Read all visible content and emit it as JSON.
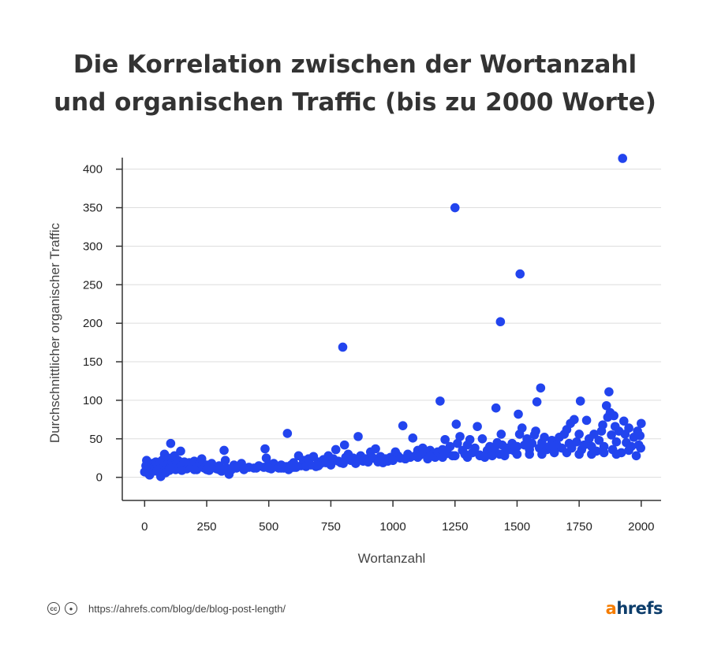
{
  "title_lines": [
    "Die Korrelation zwischen der Wortanzahl",
    "und organischen Traffic (bis zu 2000 Worte)"
  ],
  "footer": {
    "license_icons": [
      "cc-icon",
      "by-icon"
    ],
    "url": "https://ahrefs.com/blog/de/blog-post-length/"
  },
  "logo": {
    "first": "a",
    "rest": "hrefs"
  },
  "chart_data": {
    "type": "scatter",
    "title": "Die Korrelation zwischen der Wortanzahl und organischen Traffic (bis zu 2000 Worte)",
    "xlabel": "Wortanzahl",
    "ylabel": "Durchschnittlicher organischer Traffic",
    "xlim": [
      -90,
      2080
    ],
    "ylim": [
      -30,
      415
    ],
    "xticks": [
      0,
      250,
      500,
      750,
      1000,
      1250,
      1500,
      1750,
      2000
    ],
    "yticks": [
      0,
      50,
      100,
      150,
      200,
      250,
      300,
      350,
      400
    ],
    "grid": true,
    "color": "#2244ee",
    "points": [
      [
        0,
        7
      ],
      [
        5,
        15
      ],
      [
        8,
        22
      ],
      [
        12,
        10
      ],
      [
        15,
        5
      ],
      [
        20,
        3
      ],
      [
        25,
        12
      ],
      [
        30,
        18
      ],
      [
        35,
        8
      ],
      [
        40,
        14
      ],
      [
        45,
        20
      ],
      [
        50,
        9
      ],
      [
        55,
        16
      ],
      [
        60,
        11
      ],
      [
        65,
        1
      ],
      [
        70,
        22
      ],
      [
        75,
        13
      ],
      [
        80,
        30
      ],
      [
        85,
        6
      ],
      [
        90,
        17
      ],
      [
        95,
        25
      ],
      [
        100,
        12
      ],
      [
        105,
        44
      ],
      [
        110,
        20
      ],
      [
        115,
        15
      ],
      [
        120,
        28
      ],
      [
        125,
        10
      ],
      [
        130,
        18
      ],
      [
        135,
        22
      ],
      [
        140,
        12
      ],
      [
        145,
        34
      ],
      [
        150,
        16
      ],
      [
        160,
        20
      ],
      [
        170,
        11
      ],
      [
        180,
        19
      ],
      [
        190,
        14
      ],
      [
        200,
        21
      ],
      [
        210,
        10
      ],
      [
        220,
        17
      ],
      [
        230,
        24
      ],
      [
        240,
        12
      ],
      [
        250,
        16
      ],
      [
        260,
        9
      ],
      [
        270,
        18
      ],
      [
        280,
        13
      ],
      [
        290,
        11
      ],
      [
        300,
        15
      ],
      [
        310,
        8
      ],
      [
        320,
        35
      ],
      [
        325,
        22
      ],
      [
        330,
        12
      ],
      [
        340,
        4
      ],
      [
        350,
        10
      ],
      [
        360,
        16
      ],
      [
        370,
        12
      ],
      [
        380,
        14
      ],
      [
        390,
        18
      ],
      [
        400,
        10
      ],
      [
        420,
        13
      ],
      [
        440,
        12
      ],
      [
        460,
        15
      ],
      [
        480,
        13
      ],
      [
        485,
        37
      ],
      [
        490,
        25
      ],
      [
        500,
        17
      ],
      [
        510,
        11
      ],
      [
        520,
        18
      ],
      [
        530,
        14
      ],
      [
        540,
        12
      ],
      [
        550,
        16
      ],
      [
        560,
        12
      ],
      [
        570,
        14
      ],
      [
        575,
        57
      ],
      [
        580,
        10
      ],
      [
        590,
        16
      ],
      [
        600,
        19
      ],
      [
        610,
        13
      ],
      [
        620,
        28
      ],
      [
        630,
        15
      ],
      [
        640,
        22
      ],
      [
        650,
        18
      ],
      [
        660,
        24
      ],
      [
        670,
        16
      ],
      [
        680,
        27
      ],
      [
        690,
        14
      ],
      [
        700,
        20
      ],
      [
        710,
        18
      ],
      [
        720,
        23
      ],
      [
        730,
        19
      ],
      [
        740,
        28
      ],
      [
        750,
        17
      ],
      [
        760,
        24
      ],
      [
        770,
        36
      ],
      [
        780,
        21
      ],
      [
        790,
        19
      ],
      [
        798,
        169
      ],
      [
        805,
        42
      ],
      [
        810,
        26
      ],
      [
        820,
        30
      ],
      [
        830,
        22
      ],
      [
        840,
        25
      ],
      [
        850,
        18
      ],
      [
        860,
        53
      ],
      [
        870,
        28
      ],
      [
        880,
        21
      ],
      [
        890,
        24
      ],
      [
        900,
        20
      ],
      [
        910,
        33
      ],
      [
        920,
        25
      ],
      [
        930,
        37
      ],
      [
        940,
        20
      ],
      [
        950,
        27
      ],
      [
        960,
        19
      ],
      [
        970,
        24
      ],
      [
        980,
        21
      ],
      [
        990,
        26
      ],
      [
        1000,
        22
      ],
      [
        1010,
        33
      ],
      [
        1020,
        28
      ],
      [
        1030,
        25
      ],
      [
        1040,
        67
      ],
      [
        1050,
        24
      ],
      [
        1060,
        30
      ],
      [
        1070,
        26
      ],
      [
        1080,
        51
      ],
      [
        1090,
        28
      ],
      [
        1100,
        35
      ],
      [
        1110,
        29
      ],
      [
        1120,
        38
      ],
      [
        1130,
        32
      ],
      [
        1140,
        24
      ],
      [
        1150,
        35
      ],
      [
        1160,
        30
      ],
      [
        1170,
        26
      ],
      [
        1180,
        33
      ],
      [
        1190,
        99
      ],
      [
        1195,
        28
      ],
      [
        1200,
        36
      ],
      [
        1210,
        49
      ],
      [
        1220,
        31
      ],
      [
        1230,
        40
      ],
      [
        1240,
        28
      ],
      [
        1250,
        350
      ],
      [
        1255,
        69
      ],
      [
        1260,
        44
      ],
      [
        1270,
        53
      ],
      [
        1280,
        35
      ],
      [
        1290,
        30
      ],
      [
        1300,
        42
      ],
      [
        1310,
        49
      ],
      [
        1320,
        32
      ],
      [
        1330,
        38
      ],
      [
        1340,
        66
      ],
      [
        1350,
        29
      ],
      [
        1360,
        50
      ],
      [
        1370,
        26
      ],
      [
        1380,
        35
      ],
      [
        1390,
        40
      ],
      [
        1400,
        33
      ],
      [
        1410,
        38
      ],
      [
        1415,
        90
      ],
      [
        1420,
        45
      ],
      [
        1430,
        30
      ],
      [
        1433,
        202
      ],
      [
        1436,
        56
      ],
      [
        1440,
        42
      ],
      [
        1450,
        32
      ],
      [
        1460,
        38
      ],
      [
        1470,
        36
      ],
      [
        1480,
        44
      ],
      [
        1490,
        34
      ],
      [
        1500,
        40
      ],
      [
        1505,
        82
      ],
      [
        1510,
        56
      ],
      [
        1512,
        264
      ],
      [
        1520,
        64
      ],
      [
        1530,
        42
      ],
      [
        1540,
        50
      ],
      [
        1550,
        36
      ],
      [
        1560,
        44
      ],
      [
        1570,
        55
      ],
      [
        1575,
        60
      ],
      [
        1580,
        98
      ],
      [
        1590,
        38
      ],
      [
        1595,
        116
      ],
      [
        1600,
        45
      ],
      [
        1610,
        52
      ],
      [
        1620,
        36
      ],
      [
        1630,
        40
      ],
      [
        1640,
        48
      ],
      [
        1650,
        34
      ],
      [
        1660,
        42
      ],
      [
        1670,
        52
      ],
      [
        1680,
        38
      ],
      [
        1690,
        56
      ],
      [
        1700,
        62
      ],
      [
        1710,
        44
      ],
      [
        1715,
        70
      ],
      [
        1720,
        38
      ],
      [
        1730,
        75
      ],
      [
        1740,
        46
      ],
      [
        1750,
        56
      ],
      [
        1755,
        99
      ],
      [
        1760,
        36
      ],
      [
        1770,
        42
      ],
      [
        1780,
        74
      ],
      [
        1790,
        50
      ],
      [
        1800,
        40
      ],
      [
        1810,
        56
      ],
      [
        1820,
        34
      ],
      [
        1830,
        48
      ],
      [
        1840,
        60
      ],
      [
        1845,
        68
      ],
      [
        1850,
        40
      ],
      [
        1860,
        93
      ],
      [
        1865,
        78
      ],
      [
        1870,
        111
      ],
      [
        1875,
        84
      ],
      [
        1880,
        55
      ],
      [
        1885,
        36
      ],
      [
        1890,
        80
      ],
      [
        1895,
        66
      ],
      [
        1900,
        46
      ],
      [
        1910,
        60
      ],
      [
        1920,
        32
      ],
      [
        1925,
        414
      ],
      [
        1930,
        73
      ],
      [
        1935,
        56
      ],
      [
        1940,
        45
      ],
      [
        1950,
        64
      ],
      [
        1960,
        40
      ],
      [
        1970,
        52
      ],
      [
        1980,
        28
      ],
      [
        1985,
        60
      ],
      [
        1990,
        42
      ],
      [
        1995,
        54
      ],
      [
        2000,
        70
      ],
      [
        1998,
        38
      ],
      [
        1750,
        30
      ],
      [
        1800,
        30
      ],
      [
        1850,
        32
      ],
      [
        1900,
        30
      ],
      [
        1950,
        35
      ],
      [
        1700,
        32
      ],
      [
        1650,
        32
      ],
      [
        1600,
        30
      ],
      [
        1550,
        30
      ],
      [
        1500,
        30
      ],
      [
        1450,
        28
      ],
      [
        1400,
        28
      ],
      [
        1350,
        28
      ],
      [
        1300,
        26
      ],
      [
        1250,
        28
      ],
      [
        1200,
        26
      ],
      [
        1150,
        27
      ],
      [
        1100,
        26
      ],
      [
        1050,
        24
      ],
      [
        1000,
        22
      ],
      [
        950,
        22
      ],
      [
        900,
        20
      ],
      [
        850,
        20
      ],
      [
        800,
        18
      ],
      [
        750,
        16
      ],
      [
        700,
        15
      ],
      [
        650,
        14
      ],
      [
        600,
        13
      ],
      [
        550,
        12
      ],
      [
        500,
        12
      ],
      [
        450,
        12
      ],
      [
        400,
        11
      ],
      [
        350,
        11
      ],
      [
        300,
        10
      ],
      [
        250,
        10
      ],
      [
        200,
        10
      ],
      [
        150,
        9
      ],
      [
        100,
        9
      ],
      [
        50,
        8
      ]
    ]
  }
}
